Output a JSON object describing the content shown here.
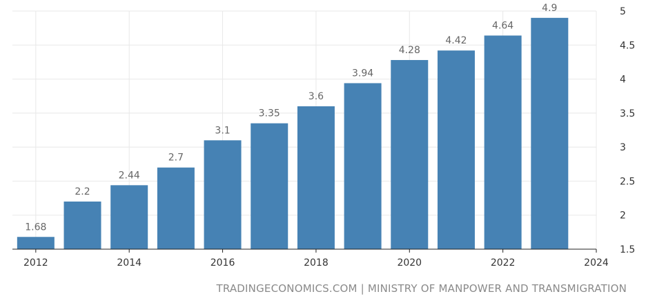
{
  "chart_data": {
    "type": "bar",
    "title": "",
    "xlabel": "",
    "ylabel": "",
    "categories": [
      "2012",
      "2013",
      "2014",
      "2015",
      "2016",
      "2017",
      "2018",
      "2019",
      "2020",
      "2021",
      "2022",
      "2023"
    ],
    "values": [
      1.68,
      2.2,
      2.44,
      2.7,
      3.1,
      3.35,
      3.6,
      3.94,
      4.28,
      4.42,
      4.64,
      4.9
    ],
    "data_labels": [
      "1.68",
      "2.2",
      "2.44",
      "2.7",
      "3.1",
      "3.35",
      "3.6",
      "3.94",
      "4.28",
      "4.42",
      "4.64",
      "4.9"
    ],
    "ylim": [
      1.5,
      5
    ],
    "y_ticks": [
      "1.5",
      "2",
      "2.5",
      "3",
      "3.5",
      "4",
      "4.5",
      "5"
    ],
    "x_ticks": [
      "2012",
      "2014",
      "2016",
      "2018",
      "2020",
      "2022",
      "2024"
    ],
    "x_range": [
      2011.5,
      2024
    ],
    "y_axis_side": "right",
    "grid": true,
    "bar_color": "#4682b4"
  },
  "source": "TRADINGECONOMICS.COM | MINISTRY OF MANPOWER AND TRANSMIGRATION"
}
